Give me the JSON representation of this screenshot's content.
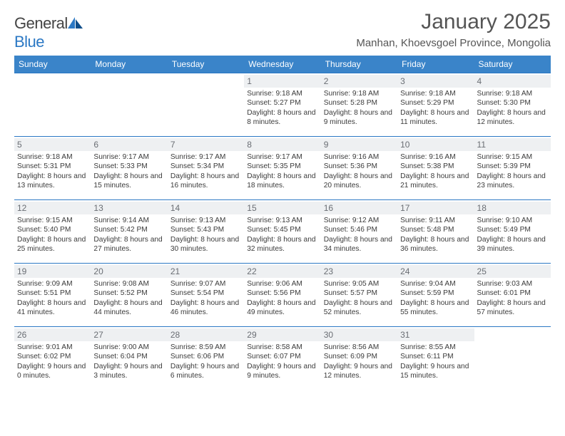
{
  "brand": {
    "word1": "General",
    "word2": "Blue"
  },
  "title": "January 2025",
  "location": "Manhan, Khoevsgoel Province, Mongolia",
  "header_bg": "#3a84c9",
  "header_text": "#ffffff",
  "rule_color": "#2b78c4",
  "daynum_bg": "#eef0f2",
  "daynum_color": "#6a6e74",
  "body_text": "#3b3b3b",
  "day_names": [
    "Sunday",
    "Monday",
    "Tuesday",
    "Wednesday",
    "Thursday",
    "Friday",
    "Saturday"
  ],
  "weeks": [
    [
      {
        "n": "",
        "sr": "",
        "ss": "",
        "dl": ""
      },
      {
        "n": "",
        "sr": "",
        "ss": "",
        "dl": ""
      },
      {
        "n": "",
        "sr": "",
        "ss": "",
        "dl": ""
      },
      {
        "n": "1",
        "sr": "Sunrise: 9:18 AM",
        "ss": "Sunset: 5:27 PM",
        "dl": "Daylight: 8 hours and 8 minutes."
      },
      {
        "n": "2",
        "sr": "Sunrise: 9:18 AM",
        "ss": "Sunset: 5:28 PM",
        "dl": "Daylight: 8 hours and 9 minutes."
      },
      {
        "n": "3",
        "sr": "Sunrise: 9:18 AM",
        "ss": "Sunset: 5:29 PM",
        "dl": "Daylight: 8 hours and 11 minutes."
      },
      {
        "n": "4",
        "sr": "Sunrise: 9:18 AM",
        "ss": "Sunset: 5:30 PM",
        "dl": "Daylight: 8 hours and 12 minutes."
      }
    ],
    [
      {
        "n": "5",
        "sr": "Sunrise: 9:18 AM",
        "ss": "Sunset: 5:31 PM",
        "dl": "Daylight: 8 hours and 13 minutes."
      },
      {
        "n": "6",
        "sr": "Sunrise: 9:17 AM",
        "ss": "Sunset: 5:33 PM",
        "dl": "Daylight: 8 hours and 15 minutes."
      },
      {
        "n": "7",
        "sr": "Sunrise: 9:17 AM",
        "ss": "Sunset: 5:34 PM",
        "dl": "Daylight: 8 hours and 16 minutes."
      },
      {
        "n": "8",
        "sr": "Sunrise: 9:17 AM",
        "ss": "Sunset: 5:35 PM",
        "dl": "Daylight: 8 hours and 18 minutes."
      },
      {
        "n": "9",
        "sr": "Sunrise: 9:16 AM",
        "ss": "Sunset: 5:36 PM",
        "dl": "Daylight: 8 hours and 20 minutes."
      },
      {
        "n": "10",
        "sr": "Sunrise: 9:16 AM",
        "ss": "Sunset: 5:38 PM",
        "dl": "Daylight: 8 hours and 21 minutes."
      },
      {
        "n": "11",
        "sr": "Sunrise: 9:15 AM",
        "ss": "Sunset: 5:39 PM",
        "dl": "Daylight: 8 hours and 23 minutes."
      }
    ],
    [
      {
        "n": "12",
        "sr": "Sunrise: 9:15 AM",
        "ss": "Sunset: 5:40 PM",
        "dl": "Daylight: 8 hours and 25 minutes."
      },
      {
        "n": "13",
        "sr": "Sunrise: 9:14 AM",
        "ss": "Sunset: 5:42 PM",
        "dl": "Daylight: 8 hours and 27 minutes."
      },
      {
        "n": "14",
        "sr": "Sunrise: 9:13 AM",
        "ss": "Sunset: 5:43 PM",
        "dl": "Daylight: 8 hours and 30 minutes."
      },
      {
        "n": "15",
        "sr": "Sunrise: 9:13 AM",
        "ss": "Sunset: 5:45 PM",
        "dl": "Daylight: 8 hours and 32 minutes."
      },
      {
        "n": "16",
        "sr": "Sunrise: 9:12 AM",
        "ss": "Sunset: 5:46 PM",
        "dl": "Daylight: 8 hours and 34 minutes."
      },
      {
        "n": "17",
        "sr": "Sunrise: 9:11 AM",
        "ss": "Sunset: 5:48 PM",
        "dl": "Daylight: 8 hours and 36 minutes."
      },
      {
        "n": "18",
        "sr": "Sunrise: 9:10 AM",
        "ss": "Sunset: 5:49 PM",
        "dl": "Daylight: 8 hours and 39 minutes."
      }
    ],
    [
      {
        "n": "19",
        "sr": "Sunrise: 9:09 AM",
        "ss": "Sunset: 5:51 PM",
        "dl": "Daylight: 8 hours and 41 minutes."
      },
      {
        "n": "20",
        "sr": "Sunrise: 9:08 AM",
        "ss": "Sunset: 5:52 PM",
        "dl": "Daylight: 8 hours and 44 minutes."
      },
      {
        "n": "21",
        "sr": "Sunrise: 9:07 AM",
        "ss": "Sunset: 5:54 PM",
        "dl": "Daylight: 8 hours and 46 minutes."
      },
      {
        "n": "22",
        "sr": "Sunrise: 9:06 AM",
        "ss": "Sunset: 5:56 PM",
        "dl": "Daylight: 8 hours and 49 minutes."
      },
      {
        "n": "23",
        "sr": "Sunrise: 9:05 AM",
        "ss": "Sunset: 5:57 PM",
        "dl": "Daylight: 8 hours and 52 minutes."
      },
      {
        "n": "24",
        "sr": "Sunrise: 9:04 AM",
        "ss": "Sunset: 5:59 PM",
        "dl": "Daylight: 8 hours and 55 minutes."
      },
      {
        "n": "25",
        "sr": "Sunrise: 9:03 AM",
        "ss": "Sunset: 6:01 PM",
        "dl": "Daylight: 8 hours and 57 minutes."
      }
    ],
    [
      {
        "n": "26",
        "sr": "Sunrise: 9:01 AM",
        "ss": "Sunset: 6:02 PM",
        "dl": "Daylight: 9 hours and 0 minutes."
      },
      {
        "n": "27",
        "sr": "Sunrise: 9:00 AM",
        "ss": "Sunset: 6:04 PM",
        "dl": "Daylight: 9 hours and 3 minutes."
      },
      {
        "n": "28",
        "sr": "Sunrise: 8:59 AM",
        "ss": "Sunset: 6:06 PM",
        "dl": "Daylight: 9 hours and 6 minutes."
      },
      {
        "n": "29",
        "sr": "Sunrise: 8:58 AM",
        "ss": "Sunset: 6:07 PM",
        "dl": "Daylight: 9 hours and 9 minutes."
      },
      {
        "n": "30",
        "sr": "Sunrise: 8:56 AM",
        "ss": "Sunset: 6:09 PM",
        "dl": "Daylight: 9 hours and 12 minutes."
      },
      {
        "n": "31",
        "sr": "Sunrise: 8:55 AM",
        "ss": "Sunset: 6:11 PM",
        "dl": "Daylight: 9 hours and 15 minutes."
      },
      {
        "n": "",
        "sr": "",
        "ss": "",
        "dl": ""
      }
    ]
  ]
}
